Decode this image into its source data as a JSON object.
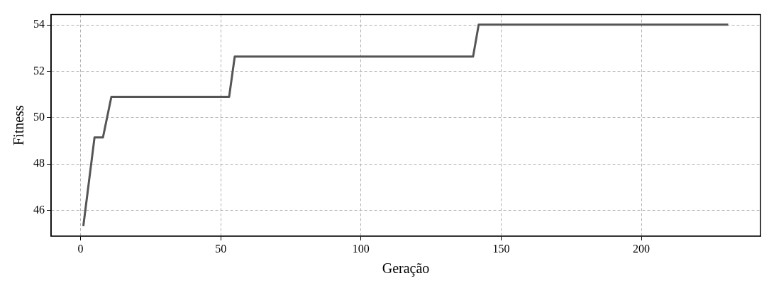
{
  "chart_data": {
    "type": "line",
    "xlabel": "Geração",
    "ylabel": "Fitness",
    "x": [
      1,
      5,
      8,
      11,
      53,
      55,
      140,
      142,
      231
    ],
    "series": [
      {
        "color": "#555555",
        "values": [
          45.32,
          49.15,
          49.15,
          50.9,
          50.9,
          52.64,
          52.64,
          54.02,
          54.02
        ]
      }
    ],
    "xlim": [
      -10.5,
      242.5
    ],
    "ylim": [
      44.89,
      54.45
    ],
    "xticks": [
      0,
      50,
      100,
      150,
      200
    ],
    "yticks": [
      46,
      48,
      50,
      52,
      54
    ],
    "grid": true,
    "legend": false,
    "marker": "none",
    "line_style": "solid"
  }
}
